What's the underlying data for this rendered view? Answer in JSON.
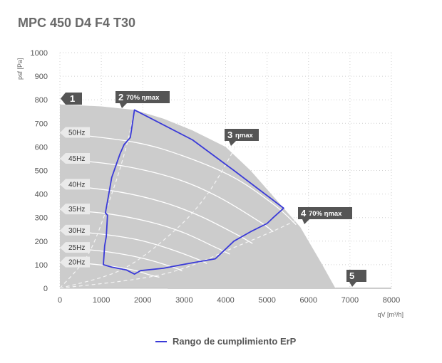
{
  "title": "MPC 450 D4 F4 T30",
  "legend": {
    "label": "Rango de cumplimiento ErP",
    "color": "#3a3ad8"
  },
  "chart_data": {
    "type": "area",
    "xlabel": "qV [m³/h]",
    "ylabel": "psf [Pa]",
    "xlim": [
      0,
      8000
    ],
    "ylim": [
      0,
      1000
    ],
    "x_ticks": [
      0,
      1000,
      2000,
      3000,
      4000,
      5000,
      6000,
      7000,
      8000
    ],
    "y_ticks": [
      0,
      100,
      200,
      300,
      400,
      500,
      600,
      700,
      800,
      900,
      1000
    ],
    "grid": true,
    "colors": {
      "envelope": "#cccccc",
      "erp": "#3a3ad8",
      "curves": "#ffffff",
      "marker": "#555555"
    },
    "envelope": [
      [
        0,
        780
      ],
      [
        1000,
        772
      ],
      [
        1800,
        757
      ],
      [
        2500,
        720
      ],
      [
        3200,
        670
      ],
      [
        4000,
        600
      ],
      [
        4600,
        500
      ],
      [
        5400,
        340
      ],
      [
        5800,
        260
      ],
      [
        6300,
        110
      ],
      [
        6650,
        0
      ],
      [
        0,
        0
      ]
    ],
    "speed_curves": [
      {
        "label": "50Hz",
        "points": [
          [
            0,
            660
          ],
          [
            1800,
            620
          ],
          [
            3000,
            560
          ],
          [
            4200,
            470
          ],
          [
            5200,
            350
          ],
          [
            5700,
            270
          ]
        ]
      },
      {
        "label": "45Hz",
        "points": [
          [
            0,
            550
          ],
          [
            1500,
            520
          ],
          [
            2800,
            465
          ],
          [
            3800,
            390
          ],
          [
            4800,
            285
          ],
          [
            5150,
            240
          ]
        ]
      },
      {
        "label": "40Hz",
        "points": [
          [
            0,
            440
          ],
          [
            1400,
            410
          ],
          [
            2500,
            365
          ],
          [
            3400,
            305
          ],
          [
            4300,
            225
          ],
          [
            4650,
            190
          ]
        ]
      },
      {
        "label": "35Hz",
        "points": [
          [
            0,
            335
          ],
          [
            1200,
            315
          ],
          [
            2200,
            280
          ],
          [
            3000,
            235
          ],
          [
            3800,
            170
          ],
          [
            4100,
            145
          ]
        ]
      },
      {
        "label": "30Hz",
        "points": [
          [
            0,
            245
          ],
          [
            1000,
            230
          ],
          [
            1900,
            205
          ],
          [
            2600,
            170
          ],
          [
            3300,
            125
          ],
          [
            3550,
            105
          ]
        ]
      },
      {
        "label": "25Hz",
        "points": [
          [
            0,
            172
          ],
          [
            900,
            160
          ],
          [
            1600,
            142
          ],
          [
            2200,
            118
          ],
          [
            2800,
            85
          ],
          [
            2950,
            73
          ]
        ]
      },
      {
        "label": "20Hz",
        "points": [
          [
            0,
            110
          ],
          [
            700,
            104
          ],
          [
            1300,
            92
          ],
          [
            1800,
            76
          ],
          [
            2200,
            55
          ],
          [
            2400,
            47
          ]
        ]
      }
    ],
    "efficiency_lines": [
      {
        "label": "2 70% ηmax",
        "points": [
          [
            0,
            0
          ],
          [
            700,
            150
          ],
          [
            1250,
            400
          ],
          [
            1600,
            600
          ],
          [
            1800,
            757
          ]
        ]
      },
      {
        "label": "3 ηmax",
        "points": [
          [
            0,
            0
          ],
          [
            1500,
            80
          ],
          [
            2800,
            250
          ],
          [
            3600,
            410
          ],
          [
            4300,
            620
          ]
        ]
      },
      {
        "label": "4 70% ηmax",
        "points": [
          [
            0,
            0
          ],
          [
            2500,
            60
          ],
          [
            4300,
            180
          ],
          [
            5600,
            280
          ],
          [
            6000,
            330
          ]
        ]
      }
    ],
    "erp_range": [
      [
        1050,
        100
      ],
      [
        1080,
        180
      ],
      [
        1120,
        220
      ],
      [
        1150,
        310
      ],
      [
        1100,
        320
      ],
      [
        1250,
        470
      ],
      [
        1450,
        570
      ],
      [
        1550,
        610
      ],
      [
        1700,
        640
      ],
      [
        1800,
        757
      ],
      [
        3200,
        630
      ],
      [
        4200,
        500
      ],
      [
        4800,
        420
      ],
      [
        5400,
        340
      ],
      [
        5150,
        300
      ],
      [
        5000,
        275
      ],
      [
        4600,
        240
      ],
      [
        4200,
        200
      ],
      [
        3750,
        125
      ],
      [
        3100,
        105
      ],
      [
        2500,
        85
      ],
      [
        1950,
        75
      ],
      [
        1800,
        60
      ],
      [
        1600,
        78
      ],
      [
        1250,
        90
      ],
      [
        1050,
        100
      ]
    ],
    "markers": [
      {
        "num": "1",
        "text": ""
      },
      {
        "num": "2",
        "text": "70% ηmax"
      },
      {
        "num": "3",
        "text": "ηmax"
      },
      {
        "num": "4",
        "text": "70% ηmax"
      },
      {
        "num": "5",
        "text": ""
      }
    ]
  }
}
